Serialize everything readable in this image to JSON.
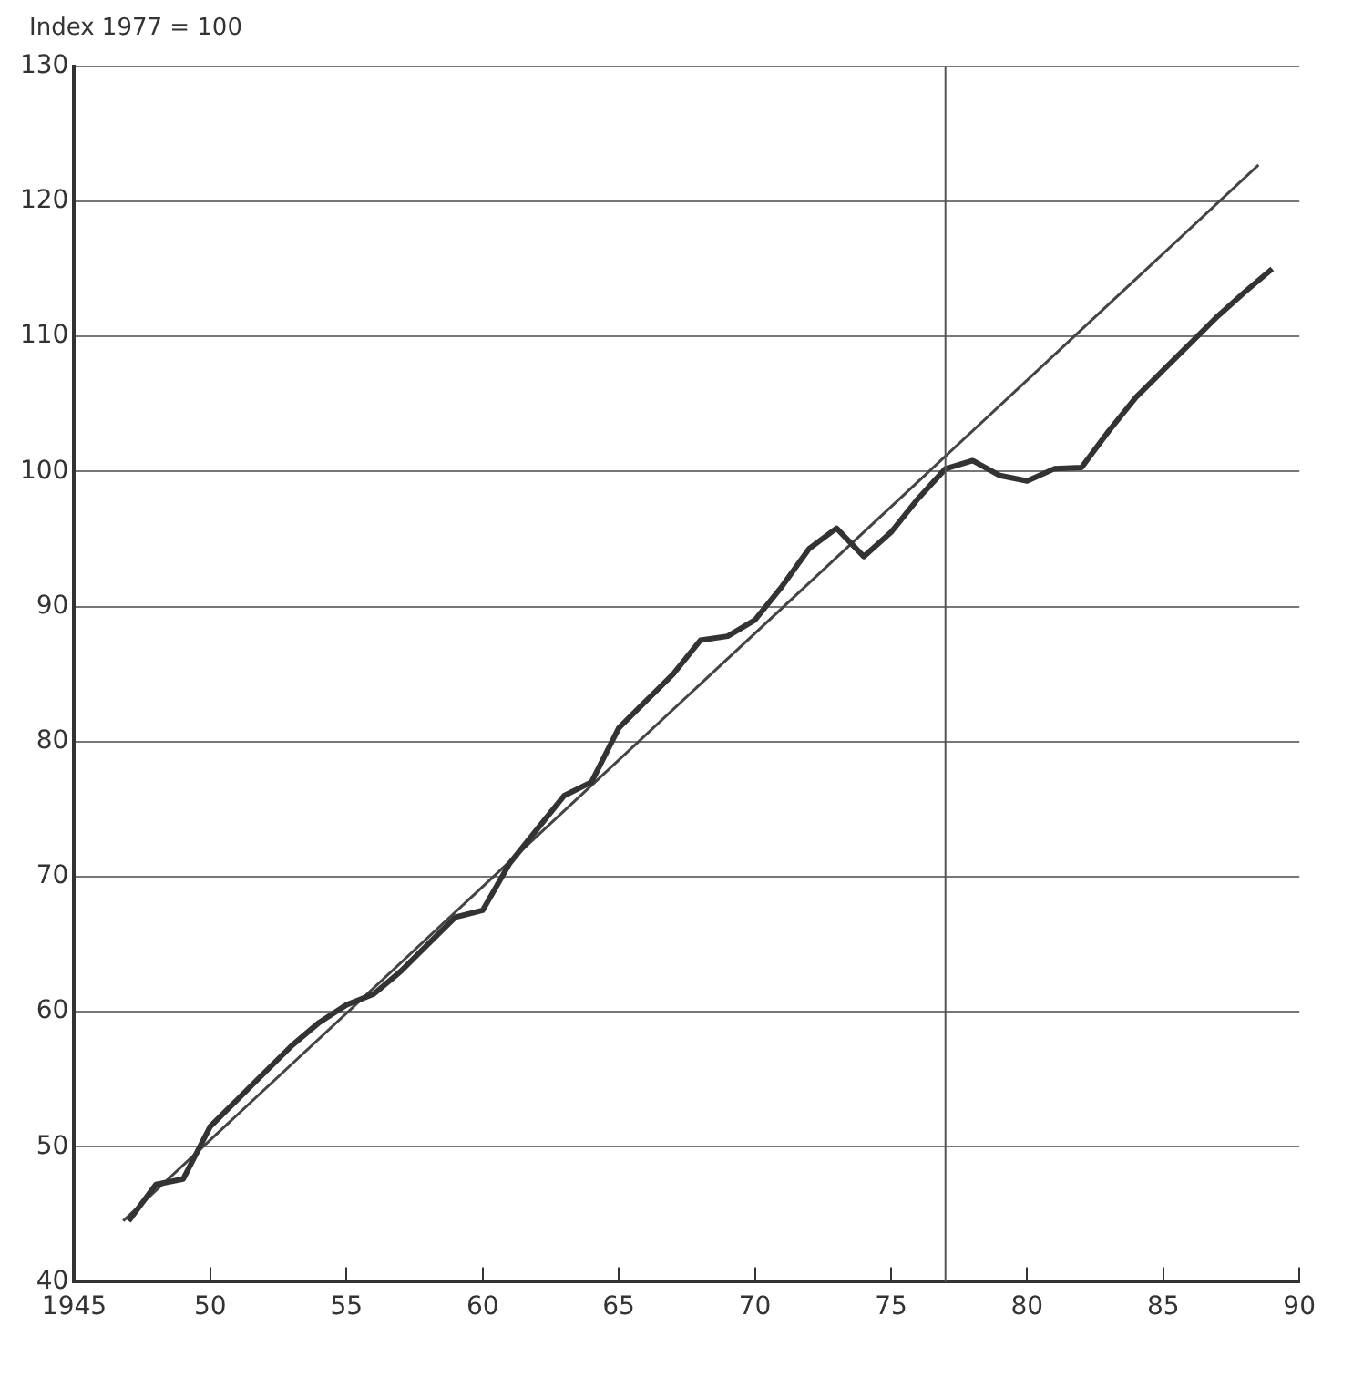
{
  "chart_data": {
    "type": "line",
    "ylabel": "Index 1977 = 100",
    "series": [
      {
        "color": "#333333",
        "x": [
          1947,
          1948,
          1949,
          1950,
          1951,
          1952,
          1953,
          1954,
          1955,
          1956,
          1957,
          1958,
          1959,
          1960,
          1961,
          1962,
          1963,
          1964,
          1965,
          1966,
          1967,
          1968,
          1969,
          1970,
          1971,
          1972,
          1973,
          1974,
          1975,
          1976,
          1977,
          1978,
          1979,
          1980,
          1981,
          1982,
          1983,
          1984,
          1985,
          1986,
          1987,
          1988,
          1989
        ],
        "values": [
          44.5,
          47.2,
          47.6,
          51.5,
          53.5,
          55.5,
          57.5,
          59.2,
          60.5,
          61.3,
          63,
          65,
          67,
          67.5,
          71,
          73.5,
          76,
          77,
          81,
          83,
          85,
          87.5,
          87.8,
          89,
          91.5,
          94.3,
          95.8,
          93.7,
          95.5,
          98,
          100.2,
          100.8,
          99.7,
          99.3,
          100.2,
          100.3,
          103,
          105.5,
          107.5,
          109.5,
          111.5,
          113.3,
          115
        ]
      },
      {
        "type": "line",
        "color": "#444444",
        "x": [
          1946.8,
          1988.5
        ],
        "values": [
          44.5,
          122.7
        ]
      }
    ],
    "xlim": [
      1945,
      1990
    ],
    "xticks": [
      {
        "value": 1945,
        "label": "1945"
      },
      {
        "value": 1950,
        "label": "50"
      },
      {
        "value": 1955,
        "label": "55"
      },
      {
        "value": 1960,
        "label": "60"
      },
      {
        "value": 1965,
        "label": "65"
      },
      {
        "value": 1970,
        "label": "70"
      },
      {
        "value": 1975,
        "label": "75"
      },
      {
        "value": 1980,
        "label": "80"
      },
      {
        "value": 1985,
        "label": "85"
      },
      {
        "value": 1990,
        "label": "90"
      }
    ],
    "ylim": [
      40,
      130
    ],
    "yticks": [
      40,
      50,
      60,
      70,
      80,
      90,
      100,
      110,
      120,
      130
    ],
    "ref_lines": [
      {
        "axis": "x",
        "value": 1977,
        "color": "#555555"
      }
    ],
    "grid": "y",
    "legend": false,
    "marker": "none",
    "line_style": "solid"
  }
}
